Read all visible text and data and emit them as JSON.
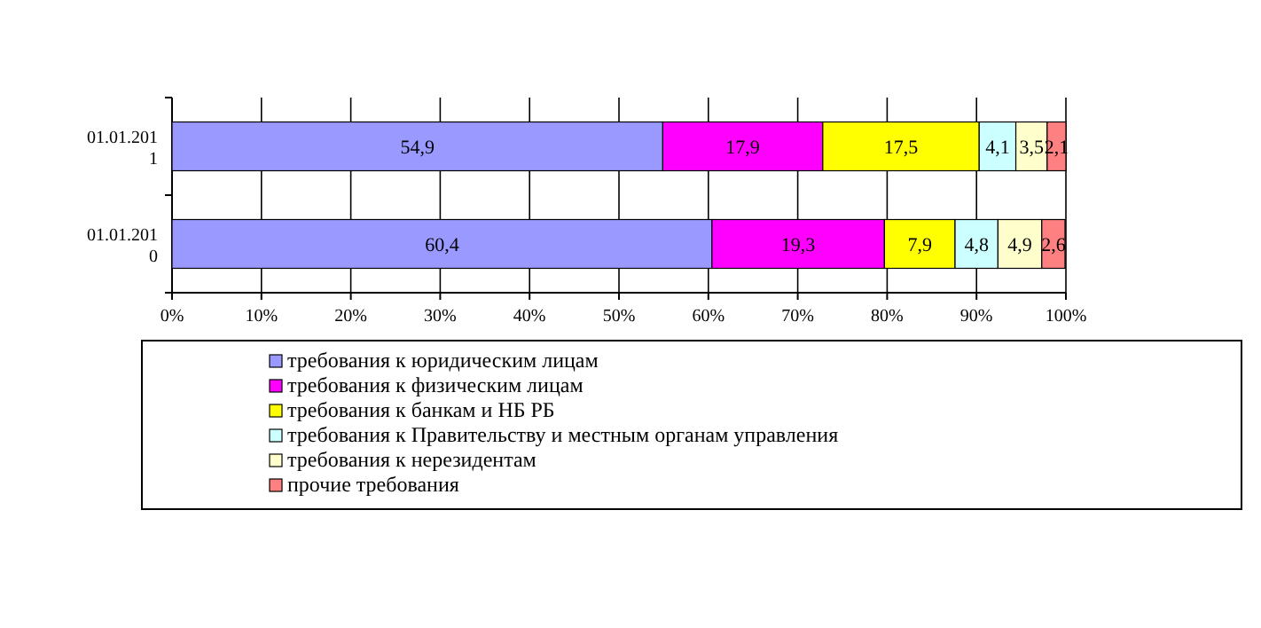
{
  "chart_data": {
    "type": "bar",
    "orientation": "horizontal",
    "stacked": true,
    "categories": [
      "01.01.2011",
      "01.01.2010"
    ],
    "series": [
      {
        "name": "требования к юридическим лицам",
        "color": "#9999ff",
        "values": [
          54.9,
          60.4
        ],
        "value_labels": [
          "54,9",
          "60,4"
        ]
      },
      {
        "name": "требования к физическим лицам",
        "color": "#ff00ff",
        "values": [
          17.9,
          19.3
        ],
        "value_labels": [
          "17,9",
          "19,3"
        ]
      },
      {
        "name": "требования к банкам и НБ РБ",
        "color": "#ffff00",
        "values": [
          17.5,
          7.9
        ],
        "value_labels": [
          "17,5",
          "7,9"
        ]
      },
      {
        "name": "требования к Правительству и местным органам управления",
        "color": "#ccffff",
        "values": [
          4.1,
          4.8
        ],
        "value_labels": [
          "4,1",
          "4,8"
        ]
      },
      {
        "name": "требования к нерезидентам",
        "color": "#ffffcc",
        "values": [
          3.5,
          4.9
        ],
        "value_labels": [
          "3,5",
          "4,9"
        ]
      },
      {
        "name": "прочие требования",
        "color": "#ff8080",
        "values": [
          2.1,
          2.6
        ],
        "value_labels": [
          "2,1",
          "2,6"
        ]
      }
    ],
    "xlim": [
      0,
      100
    ],
    "xticks": [
      {
        "value": 0,
        "label": "0%"
      },
      {
        "value": 10,
        "label": "10%"
      },
      {
        "value": 20,
        "label": "20%"
      },
      {
        "value": 30,
        "label": "30%"
      },
      {
        "value": 40,
        "label": "40%"
      },
      {
        "value": 50,
        "label": "50%"
      },
      {
        "value": 60,
        "label": "60%"
      },
      {
        "value": 70,
        "label": "70%"
      },
      {
        "value": 80,
        "label": "80%"
      },
      {
        "value": 90,
        "label": "90%"
      },
      {
        "value": 100,
        "label": "100%"
      }
    ],
    "grid": "x",
    "legend": "bottom"
  }
}
